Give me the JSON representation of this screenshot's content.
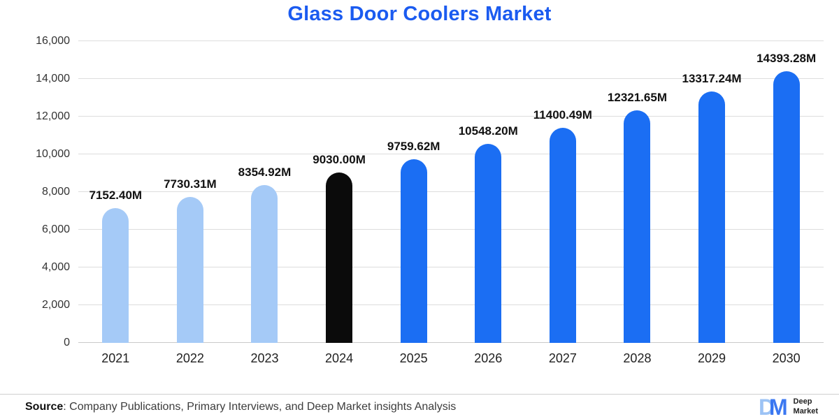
{
  "title": "Glass Door Coolers Market",
  "source": {
    "label": "Source",
    "text": ": Company Publications, Primary Interviews, and Deep Market insights Analysis"
  },
  "logo": {
    "brand_line1": "Deep",
    "brand_line2": "Market"
  },
  "theme": {
    "title_color": "#1B5BF0",
    "grid_color": "#DDDDDD",
    "label_color": "#111111",
    "axis_text_color": "#333333",
    "source_text_color": "#3C3C3C",
    "logo_light_blue": "#9CC3F5",
    "logo_blue": "#2B6CF0"
  },
  "chart_data": {
    "type": "bar",
    "title": "Glass Door Coolers Market",
    "xlabel": "",
    "ylabel": "",
    "categories": [
      "2021",
      "2022",
      "2023",
      "2024",
      "2025",
      "2026",
      "2027",
      "2028",
      "2029",
      "2030"
    ],
    "values": [
      7152.4,
      7730.31,
      8354.92,
      9030.0,
      9759.62,
      10548.2,
      11400.49,
      12321.65,
      13317.24,
      14393.28
    ],
    "labels": [
      "7152.40M",
      "7730.31M",
      "8354.92M",
      "9030.00M",
      "9759.62M",
      "10548.20M",
      "11400.49M",
      "12321.65M",
      "13317.24M",
      "14393.28M"
    ],
    "bar_colors": [
      "#A5CAF7",
      "#A5CAF7",
      "#A5CAF7",
      "#0B0B0B",
      "#1B6EF3",
      "#1B6EF3",
      "#1B6EF3",
      "#1B6EF3",
      "#1B6EF3",
      "#1B6EF3"
    ],
    "ylim": [
      0,
      16000
    ],
    "yticks": [
      "0",
      "2,000",
      "4,000",
      "6,000",
      "8,000",
      "10,000",
      "12,000",
      "14,000",
      "16,000"
    ],
    "grid": true,
    "legend_position": "none"
  }
}
